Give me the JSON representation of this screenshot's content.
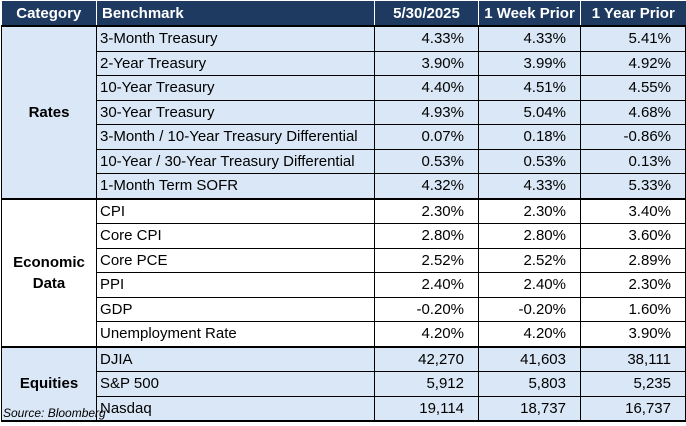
{
  "headers": {
    "category": "Category",
    "benchmark": "Benchmark",
    "date1": "5/30/2025",
    "date2": "1 Week Prior",
    "date3": "1 Year Prior"
  },
  "sections": [
    {
      "category": "Rates",
      "rows": [
        {
          "benchmark": "3-Month Treasury",
          "current": "4.33%",
          "week_prior": "4.33%",
          "year_prior": "5.41%"
        },
        {
          "benchmark": "2-Year Treasury",
          "current": "3.90%",
          "week_prior": "3.99%",
          "year_prior": "4.92%"
        },
        {
          "benchmark": "10-Year Treasury",
          "current": "4.40%",
          "week_prior": "4.51%",
          "year_prior": "4.55%"
        },
        {
          "benchmark": "30-Year Treasury",
          "current": "4.93%",
          "week_prior": "5.04%",
          "year_prior": "4.68%"
        },
        {
          "benchmark": "3-Month / 10-Year Treasury Differential",
          "current": "0.07%",
          "week_prior": "0.18%",
          "year_prior": "-0.86%"
        },
        {
          "benchmark": "10-Year / 30-Year Treasury Differential",
          "current": "0.53%",
          "week_prior": "0.53%",
          "year_prior": "0.13%"
        },
        {
          "benchmark": "1-Month Term SOFR",
          "current": "4.32%",
          "week_prior": "4.33%",
          "year_prior": "5.33%"
        }
      ]
    },
    {
      "category": "Economic Data",
      "rows": [
        {
          "benchmark": "CPI",
          "current": "2.30%",
          "week_prior": "2.30%",
          "year_prior": "3.40%"
        },
        {
          "benchmark": "Core CPI",
          "current": "2.80%",
          "week_prior": "2.80%",
          "year_prior": "3.60%"
        },
        {
          "benchmark": "Core PCE",
          "current": "2.52%",
          "week_prior": "2.52%",
          "year_prior": "2.89%"
        },
        {
          "benchmark": "PPI",
          "current": "2.40%",
          "week_prior": "2.40%",
          "year_prior": "2.30%"
        },
        {
          "benchmark": "GDP",
          "current": "-0.20%",
          "week_prior": "-0.20%",
          "year_prior": "1.60%"
        },
        {
          "benchmark": "Unemployment Rate",
          "current": "4.20%",
          "week_prior": "4.20%",
          "year_prior": "3.90%"
        }
      ]
    },
    {
      "category": "Equities",
      "rows": [
        {
          "benchmark": "DJIA",
          "current": "42,270",
          "week_prior": "41,603",
          "year_prior": "38,111"
        },
        {
          "benchmark": "S&P 500",
          "current": "5,912",
          "week_prior": "5,803",
          "year_prior": "5,235"
        },
        {
          "benchmark": "Nasdaq",
          "current": "19,114",
          "week_prior": "18,737",
          "year_prior": "16,737"
        }
      ]
    }
  ],
  "source": "Source: Bloomberg",
  "colors": {
    "header_bg": "#1f3a61",
    "header_text": "#ffffff",
    "shaded_section_bg": "#dae7f6",
    "plain_section_bg": "#ffffff"
  }
}
